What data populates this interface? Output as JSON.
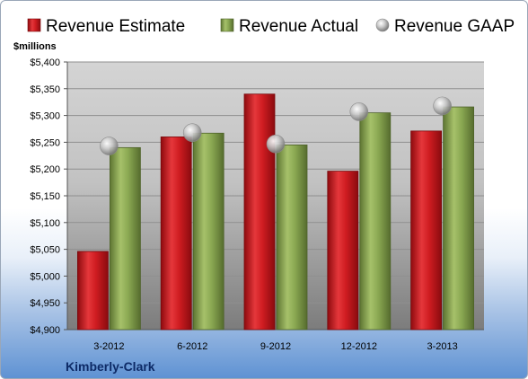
{
  "company": "Kimberly-Clark",
  "chart_data": {
    "type": "bar",
    "ylabel": "$millions",
    "categories": [
      "3-2012",
      "6-2012",
      "9-2012",
      "12-2012",
      "3-2013"
    ],
    "series": [
      {
        "name": "Revenue Estimate",
        "values": [
          5046,
          5260,
          5340,
          5196,
          5271
        ],
        "color": "#c0161c"
      },
      {
        "name": "Revenue Actual",
        "values": [
          5240,
          5267,
          5245,
          5305,
          5316
        ],
        "color": "#7e9a45"
      },
      {
        "name": "Revenue GAAP",
        "values": [
          5243,
          5268,
          5247,
          5307,
          5318
        ],
        "color": "#b8b8b8",
        "marker": "sphere"
      }
    ],
    "ylim": [
      4900,
      5400
    ],
    "yticks": [
      "$4,900",
      "$4,950",
      "$5,000",
      "$5,050",
      "$5,100",
      "$5,150",
      "$5,200",
      "$5,250",
      "$5,300",
      "$5,350",
      "$5,400"
    ],
    "grid": true,
    "legend": "top"
  }
}
